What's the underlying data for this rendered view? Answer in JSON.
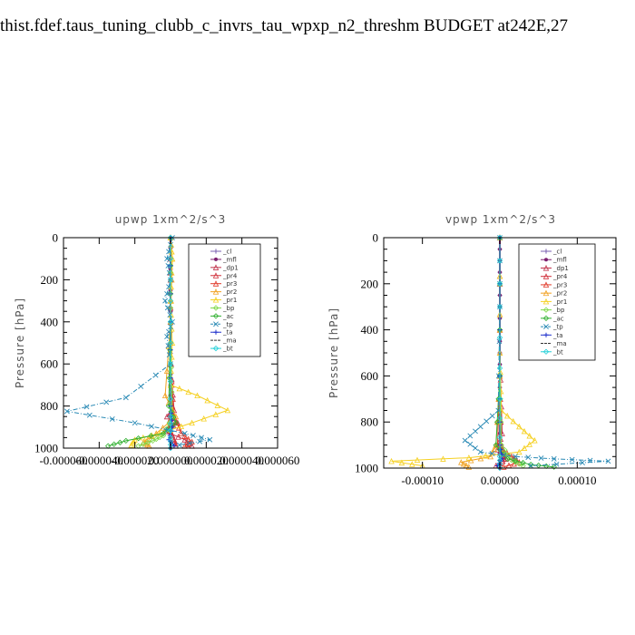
{
  "page_title": "thist.fdef.taus_tuning_clubb_c_invrs_tau_wpxp_n2_threshm  BUDGET at242E,27",
  "legend_colors": {
    "_cl": "#7a5fb0",
    "_mfl": "#7b1e6e",
    "_dp1": "#c0304a",
    "_pr4": "#d02f3a",
    "_pr3": "#e03a2a",
    "_pr2": "#f0a020",
    "_pr1": "#f5d020",
    "_bp": "#7fd94a",
    "_ac": "#30b030",
    "_tp": "#2a8ab5",
    "_ta": "#2233cc",
    "_ma": "#333333",
    "_bt": "#22d0d8"
  },
  "chart_data": [
    {
      "type": "line",
      "title": "upwp   1xm^2/s^3",
      "ylabel": "Pressure [hPa]",
      "xlabel": "",
      "xlim": [
        -6e-05,
        6e-05
      ],
      "ylim": [
        1000,
        0
      ],
      "y_inverted": true,
      "xticks": [
        "-0.000060",
        "-0.000040",
        "-0.000020",
        "0.000000",
        "0.000020",
        "0.000040",
        "0.000060"
      ],
      "xtick_values": [
        -6e-05,
        -4e-05,
        -2e-05,
        0,
        2e-05,
        4e-05,
        6e-05
      ],
      "yticks": [
        "0",
        "200",
        "400",
        "600",
        "800",
        "1000"
      ],
      "ytick_values": [
        0,
        200,
        400,
        600,
        800,
        1000
      ],
      "legend_position": "top-right",
      "series": [
        {
          "name": "_cl",
          "x": [
            0,
            0,
            0,
            0,
            0,
            0,
            0,
            0
          ],
          "y": [
            0,
            150,
            300,
            450,
            600,
            750,
            900,
            1000
          ]
        },
        {
          "name": "_mfl",
          "x": [
            0,
            0,
            0,
            0,
            0,
            0,
            0,
            0
          ],
          "y": [
            0,
            150,
            300,
            450,
            600,
            750,
            900,
            1000
          ]
        },
        {
          "name": "_dp1",
          "x": [
            0,
            0,
            0,
            2e-06,
            -2e-06,
            4e-06,
            -3e-06,
            8e-06,
            1.2e-05
          ],
          "y": [
            0,
            300,
            600,
            820,
            850,
            880,
            920,
            960,
            990
          ]
        },
        {
          "name": "_pr4",
          "x": [
            0,
            0,
            1e-06,
            -1e-06,
            2e-06,
            3e-06
          ],
          "y": [
            0,
            500,
            800,
            900,
            960,
            990
          ]
        },
        {
          "name": "_pr3",
          "x": [
            0,
            0,
            2e-06,
            6e-06,
            1.2e-05,
            8e-06
          ],
          "y": [
            0,
            600,
            850,
            930,
            970,
            990
          ]
        },
        {
          "name": "_pr2",
          "x": [
            0,
            1e-06,
            0,
            -3e-06,
            3e-06,
            -8e-06,
            -1.5e-05,
            -1.2e-05
          ],
          "y": [
            0,
            100,
            400,
            750,
            850,
            930,
            970,
            990
          ]
        },
        {
          "name": "_pr1",
          "x": [
            0,
            1e-06,
            0,
            1e-06,
            0,
            1.5e-05,
            3.2e-05,
            1.2e-05,
            -6e-06,
            -2e-05,
            -2.2e-05
          ],
          "y": [
            0,
            100,
            300,
            500,
            700,
            750,
            820,
            880,
            930,
            960,
            985
          ]
        },
        {
          "name": "_bp",
          "x": [
            0,
            0,
            1e-06,
            -4e-06,
            -1e-05,
            -1.8e-05
          ],
          "y": [
            0,
            500,
            850,
            940,
            965,
            990
          ]
        },
        {
          "name": "_ac",
          "x": [
            0,
            0,
            -1e-06,
            3e-06,
            -4e-06,
            -2.5e-05,
            -3.5e-05
          ],
          "y": [
            0,
            400,
            800,
            880,
            930,
            965,
            990
          ]
        },
        {
          "name": "_tp",
          "x": [
            1e-06,
            -2e-06,
            0,
            -3e-06,
            1e-06,
            -2e-06,
            0,
            -2.5e-05,
            -5.8e-05,
            -2e-05,
            8e-06,
            2.2e-05,
            5e-06
          ],
          "y": [
            0,
            100,
            200,
            300,
            400,
            470,
            600,
            760,
            825,
            880,
            930,
            960,
            985
          ]
        },
        {
          "name": "_ta",
          "x": [
            0,
            0,
            0,
            1e-06,
            -1e-06,
            2e-06
          ],
          "y": [
            0,
            400,
            800,
            900,
            960,
            990
          ]
        },
        {
          "name": "_ma",
          "x": [
            0,
            0,
            0,
            0,
            0,
            0
          ],
          "y": [
            0,
            300,
            600,
            850,
            950,
            1000
          ]
        },
        {
          "name": "_bt",
          "x": [
            0,
            0,
            0,
            0,
            0,
            0
          ],
          "y": [
            0,
            300,
            600,
            850,
            950,
            1000
          ]
        }
      ]
    },
    {
      "type": "line",
      "title": "vpwp   1xm^2/s^3",
      "ylabel": "Pressure [hPa]",
      "xlabel": "",
      "xlim": [
        -0.00015,
        0.00015
      ],
      "ylim": [
        1000,
        0
      ],
      "y_inverted": true,
      "xticks": [
        "-0.00010",
        "0.00000",
        "0.00010"
      ],
      "xtick_values": [
        -0.0001,
        0,
        0.0001
      ],
      "yticks": [
        "0",
        "200",
        "400",
        "600",
        "800",
        "1000"
      ],
      "ytick_values": [
        0,
        200,
        400,
        600,
        800,
        1000
      ],
      "legend_position": "top-right",
      "series": [
        {
          "name": "_cl",
          "x": [
            0,
            0,
            0,
            0,
            0,
            0,
            0,
            0
          ],
          "y": [
            0,
            150,
            300,
            450,
            600,
            750,
            900,
            1000
          ]
        },
        {
          "name": "_mfl",
          "x": [
            0,
            0,
            0,
            0,
            0,
            0,
            0,
            0
          ],
          "y": [
            0,
            150,
            300,
            450,
            600,
            750,
            900,
            1000
          ]
        },
        {
          "name": "_dp1",
          "x": [
            0,
            0,
            3e-06,
            -3e-06,
            8e-06,
            -5e-06
          ],
          "y": [
            0,
            500,
            850,
            920,
            960,
            990
          ]
        },
        {
          "name": "_pr4",
          "x": [
            0,
            0,
            2e-06,
            5e-06,
            -2e-06
          ],
          "y": [
            0,
            600,
            900,
            960,
            990
          ]
        },
        {
          "name": "_pr3",
          "x": [
            0,
            0,
            -3e-06,
            1.5e-05,
            2.5e-05,
            5e-06
          ],
          "y": [
            0,
            600,
            900,
            950,
            975,
            995
          ]
        },
        {
          "name": "_pr2",
          "x": [
            0,
            0,
            -5e-06,
            -1.2e-05,
            -5e-05,
            -4e-05
          ],
          "y": [
            0,
            600,
            900,
            950,
            975,
            995
          ]
        },
        {
          "name": "_pr1",
          "x": [
            0,
            0,
            2e-06,
            2.5e-05,
            4.5e-05,
            2.5e-05,
            -4e-05,
            -0.00014,
            -0.0001
          ],
          "y": [
            0,
            500,
            750,
            820,
            880,
            930,
            955,
            970,
            990
          ]
        },
        {
          "name": "_bp",
          "x": [
            0,
            0,
            2e-06,
            1.5e-05,
            3e-05
          ],
          "y": [
            0,
            600,
            900,
            965,
            990
          ]
        },
        {
          "name": "_ac",
          "x": [
            0,
            0,
            -5e-06,
            1e-05,
            4e-05,
            7e-05
          ],
          "y": [
            0,
            600,
            900,
            960,
            985,
            995
          ]
        },
        {
          "name": "_tp",
          "x": [
            0,
            0,
            -2e-06,
            -2.5e-05,
            -4.5e-05,
            -2.5e-05,
            2e-05,
            7e-05,
            0.00014,
            4e-05
          ],
          "y": [
            0,
            300,
            750,
            820,
            880,
            930,
            950,
            960,
            970,
            990
          ]
        },
        {
          "name": "_ta",
          "x": [
            0,
            0,
            0,
            3e-06,
            -3e-06
          ],
          "y": [
            0,
            600,
            900,
            960,
            990
          ]
        },
        {
          "name": "_ma",
          "x": [
            0,
            0,
            0,
            0,
            0
          ],
          "y": [
            0,
            300,
            700,
            950,
            1000
          ]
        },
        {
          "name": "_bt",
          "x": [
            0,
            0,
            0,
            0,
            0
          ],
          "y": [
            0,
            300,
            700,
            950,
            1000
          ]
        }
      ]
    }
  ]
}
